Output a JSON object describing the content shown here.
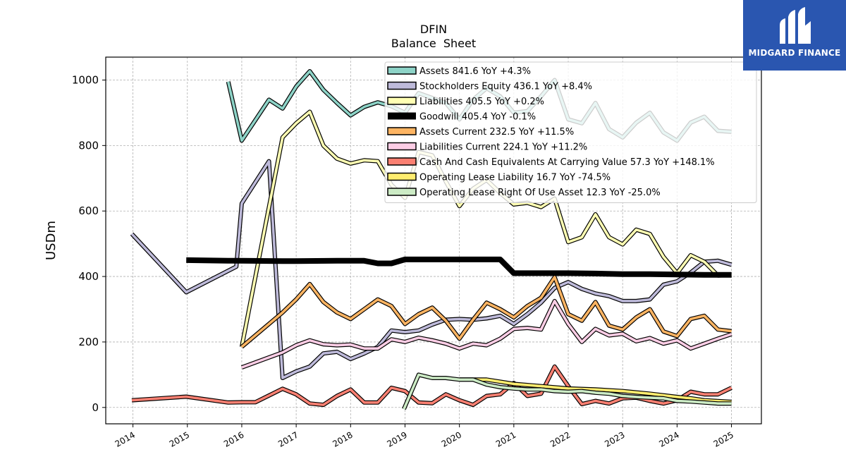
{
  "logo": {
    "text": "MIDGARD FINANCE",
    "icon": "midgard-logo-icon",
    "background": "#2a56b0"
  },
  "chart_data": {
    "type": "line",
    "title": "DFIN",
    "subtitle": "Balance  Sheet",
    "ylabel": "USDm",
    "xlabel": "",
    "ylim": [
      -50,
      1070
    ],
    "xlim": [
      2013.5,
      2025.55
    ],
    "yticks": [
      0,
      200,
      400,
      600,
      800,
      1000
    ],
    "xticks": [
      2014,
      2015,
      2016,
      2017,
      2018,
      2019,
      2020,
      2021,
      2022,
      2023,
      2024,
      2025
    ],
    "grid": true,
    "legend_position": "top-right",
    "series": [
      {
        "name": "Assets  841.6 YoY +4.3%",
        "color": "#8dd3c7",
        "x": [
          2015.75,
          2016.0,
          2016.5,
          2016.75,
          2017.0,
          2017.25,
          2017.5,
          2017.75,
          2018.0,
          2018.25,
          2018.5,
          2018.75,
          2019.0,
          2019.25,
          2019.5,
          2019.75,
          2020.0,
          2020.25,
          2020.5,
          2020.75,
          2021.0,
          2021.25,
          2021.5,
          2021.75,
          2022.0,
          2022.25,
          2022.5,
          2022.75,
          2023.0,
          2023.25,
          2023.5,
          2023.75,
          2024.0,
          2024.25,
          2024.5,
          2024.75,
          2025.0
        ],
        "y": [
          995,
          815,
          940,
          913,
          980,
          1027,
          970,
          930,
          892,
          918,
          932,
          920,
          900,
          960,
          945,
          930,
          880,
          940,
          975,
          950,
          900,
          905,
          950,
          1000,
          880,
          868,
          930,
          850,
          825,
          870,
          900,
          840,
          815,
          870,
          888,
          845,
          842
        ]
      },
      {
        "name": "Stockholders Equity  436.1 YoY +8.4%",
        "color": "#bebada",
        "x": [
          2013.98,
          2014.98,
          2015.9,
          2016.0,
          2016.5,
          2016.75,
          2017.0,
          2017.25,
          2017.5,
          2017.75,
          2018.0,
          2018.25,
          2018.5,
          2018.75,
          2019.0,
          2019.25,
          2019.5,
          2019.75,
          2020.0,
          2020.25,
          2020.5,
          2020.75,
          2021.0,
          2021.25,
          2021.5,
          2021.75,
          2022.0,
          2022.25,
          2022.5,
          2022.75,
          2023.0,
          2023.25,
          2023.5,
          2023.75,
          2024.0,
          2024.25,
          2024.5,
          2024.75,
          2025.0
        ],
        "y": [
          530,
          352,
          430,
          623,
          752,
          90,
          110,
          125,
          165,
          170,
          148,
          165,
          185,
          235,
          230,
          235,
          253,
          268,
          270,
          268,
          272,
          280,
          255,
          285,
          320,
          365,
          383,
          362,
          348,
          340,
          325,
          325,
          330,
          375,
          385,
          412,
          445,
          448,
          436
        ]
      },
      {
        "name": "Liabilities  405.5 YoY +0.2%",
        "color": "#ffffb3",
        "x": [
          2016.0,
          2016.75,
          2017.0,
          2017.25,
          2017.5,
          2017.75,
          2018.0,
          2018.25,
          2018.5,
          2018.75,
          2019.0,
          2019.25,
          2019.5,
          2019.75,
          2020.0,
          2020.25,
          2020.5,
          2020.75,
          2021.0,
          2021.25,
          2021.5,
          2021.75,
          2022.0,
          2022.25,
          2022.5,
          2022.75,
          2023.0,
          2023.25,
          2023.5,
          2023.75,
          2024.0,
          2024.25,
          2024.5,
          2024.75,
          2025.0
        ],
        "y": [
          185,
          825,
          868,
          903,
          800,
          760,
          745,
          755,
          752,
          680,
          640,
          780,
          770,
          690,
          615,
          668,
          695,
          655,
          620,
          625,
          612,
          638,
          505,
          520,
          590,
          520,
          498,
          543,
          530,
          460,
          410,
          465,
          445,
          403,
          405
        ]
      },
      {
        "name": "Goodwill  405.4 YoY -0.1%",
        "color": "#000000",
        "x": [
          2014.98,
          2015.75,
          2016.0,
          2016.75,
          2017.0,
          2017.75,
          2018.0,
          2018.25,
          2018.5,
          2018.75,
          2019.0,
          2019.5,
          2020.0,
          2020.25,
          2020.5,
          2020.75,
          2021.0,
          2021.5,
          2022.0,
          2022.5,
          2023.0,
          2023.5,
          2024.0,
          2024.5,
          2025.0
        ],
        "y": [
          450,
          448,
          448,
          447,
          447,
          448,
          448,
          448,
          440,
          440,
          452,
          452,
          452,
          452,
          452,
          452,
          410,
          410,
          410,
          409,
          407,
          407,
          406,
          405,
          405
        ]
      },
      {
        "name": "Assets Current  232.5 YoY +11.5%",
        "color": "#fdb462",
        "x": [
          2016.0,
          2016.75,
          2017.0,
          2017.25,
          2017.5,
          2017.75,
          2018.0,
          2018.25,
          2018.5,
          2018.75,
          2019.0,
          2019.25,
          2019.5,
          2019.75,
          2020.0,
          2020.25,
          2020.5,
          2020.75,
          2021.0,
          2021.25,
          2021.5,
          2021.75,
          2022.0,
          2022.25,
          2022.5,
          2022.75,
          2023.0,
          2023.25,
          2023.5,
          2023.75,
          2024.0,
          2024.25,
          2024.5,
          2024.75,
          2025.0
        ],
        "y": [
          185,
          290,
          330,
          377,
          322,
          290,
          270,
          300,
          330,
          310,
          255,
          285,
          305,
          265,
          210,
          268,
          320,
          300,
          275,
          310,
          335,
          398,
          285,
          265,
          322,
          250,
          238,
          275,
          300,
          232,
          218,
          270,
          280,
          238,
          233
        ]
      },
      {
        "name": "Liabilities Current  224.1 YoY +11.2%",
        "color": "#fccde5",
        "x": [
          2016.0,
          2016.75,
          2017.0,
          2017.25,
          2017.5,
          2017.75,
          2018.0,
          2018.25,
          2018.5,
          2018.75,
          2019.0,
          2019.25,
          2019.5,
          2019.75,
          2020.0,
          2020.25,
          2020.5,
          2020.75,
          2021.0,
          2021.25,
          2021.5,
          2021.75,
          2022.0,
          2022.25,
          2022.5,
          2022.75,
          2023.0,
          2023.25,
          2023.5,
          2023.75,
          2024.0,
          2024.25,
          2024.5,
          2024.75,
          2025.0
        ],
        "y": [
          122,
          168,
          190,
          205,
          193,
          190,
          192,
          180,
          180,
          208,
          200,
          213,
          205,
          195,
          180,
          195,
          190,
          210,
          240,
          243,
          238,
          325,
          255,
          200,
          240,
          220,
          225,
          202,
          212,
          195,
          205,
          180,
          195,
          210,
          224
        ]
      },
      {
        "name": "Cash And Cash Equivalents At Carrying Value  57.3 YoY +148.1%",
        "color": "#fb8072",
        "x": [
          2013.98,
          2014.98,
          2015.75,
          2016.0,
          2016.25,
          2016.75,
          2017.0,
          2017.25,
          2017.5,
          2017.75,
          2018.0,
          2018.25,
          2018.5,
          2018.75,
          2019.0,
          2019.25,
          2019.5,
          2019.75,
          2020.0,
          2020.25,
          2020.5,
          2020.75,
          2021.0,
          2021.25,
          2021.5,
          2021.75,
          2022.0,
          2022.25,
          2022.5,
          2022.75,
          2023.0,
          2023.25,
          2023.5,
          2023.75,
          2024.0,
          2024.25,
          2024.5,
          2024.75,
          2025.0
        ],
        "y": [
          22,
          33,
          15,
          16,
          16,
          57,
          40,
          12,
          8,
          35,
          55,
          15,
          15,
          60,
          50,
          15,
          13,
          40,
          22,
          8,
          35,
          40,
          75,
          35,
          42,
          125,
          65,
          10,
          20,
          12,
          28,
          30,
          20,
          12,
          22,
          48,
          40,
          40,
          60
        ]
      },
      {
        "name": "Operating Lease Liability  16.7 YoY -74.5%",
        "color": "#ffed6f",
        "x": [
          2020.0,
          2020.5,
          2021.0,
          2021.5,
          2022.0,
          2022.5,
          2023.0,
          2023.5,
          2024.0,
          2024.25,
          2024.5,
          2025.0
        ],
        "y": [
          85,
          85,
          72,
          65,
          58,
          55,
          50,
          42,
          32,
          28,
          22,
          17
        ]
      },
      {
        "name": "Operating Lease Right Of Use Asset  12.3 YoY -25.0%",
        "color": "#ccebc5",
        "x": [
          2018.98,
          2019.25,
          2019.5,
          2019.75,
          2020.0,
          2020.25,
          2020.5,
          2020.75,
          2021.0,
          2021.25,
          2021.5,
          2021.75,
          2022.0,
          2022.25,
          2022.5,
          2022.75,
          2023.0,
          2023.25,
          2023.5,
          2023.75,
          2024.0,
          2024.25,
          2024.5,
          2024.75,
          2025.0
        ],
        "y": [
          -5,
          100,
          90,
          90,
          85,
          85,
          70,
          62,
          58,
          55,
          55,
          50,
          48,
          50,
          45,
          42,
          35,
          32,
          30,
          28,
          20,
          18,
          15,
          12,
          12
        ]
      }
    ]
  }
}
